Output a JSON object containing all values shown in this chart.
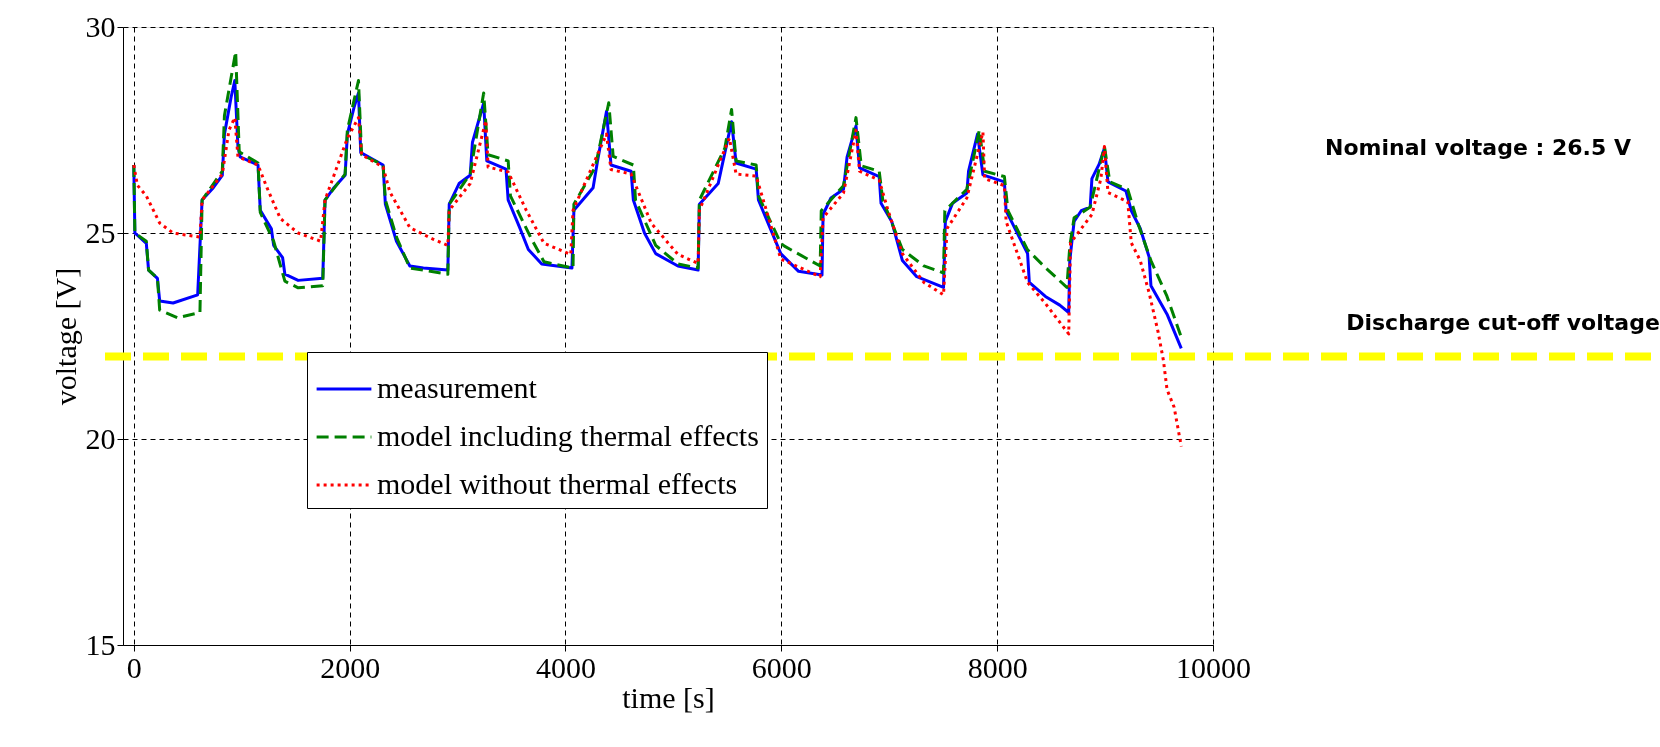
{
  "chart_data": {
    "type": "line",
    "xlabel": "time [s]",
    "ylabel": "voltage [V]",
    "xlim": [
      -100,
      10000
    ],
    "xticks": [
      0,
      2000,
      4000,
      6000,
      8000,
      10000
    ],
    "ylim": [
      15,
      30
    ],
    "yticks": [
      15,
      20,
      25,
      30
    ],
    "grid": true,
    "legend": "bottom left",
    "annotations": [
      "Nominal voltage : 26.5 V"
    ],
    "ref_lines": [
      {
        "axis": "y",
        "value": 22,
        "label": "Discharge cut-off voltage",
        "color": "#ffff00",
        "line_style": "dashed"
      }
    ],
    "series": [
      {
        "name": "measurement",
        "color": "#0000ff",
        "line_style": "solid",
        "x": [
          0,
          10,
          116,
          137,
          219,
          240,
          364,
          592,
          633,
          737,
          820,
          840,
          902,
          936,
          965,
          985,
          1151,
          1172,
          1275,
          1296,
          1379,
          1400,
          1523,
          1751,
          1772,
          1855,
          1958,
          1979,
          2041,
          2082,
          2103,
          2310,
          2331,
          2434,
          2558,
          2683,
          2910,
          2923,
          3014,
          3117,
          3138,
          3242,
          3271,
          3449,
          3469,
          3573,
          3656,
          3780,
          4060,
          4078,
          4256,
          4297,
          4380,
          4422,
          4608,
          4629,
          4732,
          4836,
          5042,
          5229,
          5241,
          5415,
          5477,
          5539,
          5581,
          5767,
          5788,
          5995,
          6160,
          6377,
          6387,
          6460,
          6576,
          6609,
          6692,
          6725,
          6907,
          6924,
          7023,
          7122,
          7255,
          7503,
          7520,
          7586,
          7719,
          7735,
          7818,
          7868,
          8067,
          8083,
          8182,
          8282,
          8298,
          8447,
          8580,
          8663,
          8673,
          8713,
          8779,
          8862,
          8878,
          8945,
          8994,
          9027,
          9193,
          9243,
          9326,
          9408,
          9425,
          9574,
          9706
        ],
        "values": [
          26.65,
          25.0,
          24.75,
          24.1,
          23.9,
          23.35,
          23.3,
          23.5,
          25.8,
          26.1,
          26.4,
          27.4,
          28.3,
          28.7,
          27.1,
          26.85,
          26.65,
          25.55,
          25.1,
          24.7,
          24.4,
          24.0,
          23.85,
          23.9,
          25.8,
          26.1,
          26.4,
          27.4,
          28.05,
          28.4,
          26.95,
          26.65,
          25.7,
          24.8,
          24.2,
          24.15,
          24.1,
          25.7,
          26.2,
          26.4,
          27.2,
          28.15,
          26.75,
          26.55,
          25.8,
          25.15,
          24.6,
          24.25,
          24.15,
          25.55,
          26.1,
          26.75,
          27.95,
          26.65,
          26.5,
          25.8,
          25.0,
          24.5,
          24.2,
          24.1,
          25.7,
          26.2,
          26.95,
          27.7,
          26.7,
          26.55,
          25.8,
          24.5,
          24.07,
          23.98,
          25.45,
          25.85,
          26.06,
          26.84,
          27.6,
          26.58,
          26.37,
          25.72,
          25.28,
          24.33,
          23.94,
          23.68,
          25.28,
          25.72,
          25.97,
          26.5,
          27.4,
          26.41,
          26.24,
          25.54,
          25.02,
          24.5,
          23.8,
          23.46,
          23.25,
          23.07,
          24.33,
          25.28,
          25.54,
          25.63,
          26.32,
          26.67,
          27.06,
          26.24,
          26.02,
          25.54,
          25.11,
          24.42,
          23.72,
          23.03,
          22.2
        ]
      },
      {
        "name": "model including thermal effects",
        "color": "#008000",
        "line_style": "dashed",
        "x": [
          0,
          10,
          116,
          137,
          219,
          240,
          406,
          613,
          633,
          820,
          840,
          944,
          977,
          1151,
          1172,
          1296,
          1400,
          1523,
          1751,
          1772,
          1958,
          1979,
          2082,
          2111,
          2310,
          2331,
          2434,
          2558,
          2910,
          2923,
          3117,
          3242,
          3283,
          3469,
          3490,
          3676,
          3801,
          4070,
          4078,
          4276,
          4401,
          4442,
          4629,
          4649,
          4836,
          5042,
          5229,
          5241,
          5477,
          5539,
          5581,
          5767,
          5788,
          5995,
          6029,
          6360,
          6370,
          6576,
          6692,
          6741,
          6907,
          6940,
          7122,
          7321,
          7503,
          7515,
          7719,
          7835,
          7884,
          8067,
          8100,
          8182,
          8282,
          8447,
          8646,
          8673,
          8713,
          8862,
          8994,
          9044,
          9210,
          9309,
          9425,
          9574,
          9706
        ],
        "values": [
          26.65,
          25.0,
          24.8,
          24.1,
          23.9,
          23.13,
          22.94,
          23.07,
          25.8,
          26.5,
          27.85,
          29.4,
          26.97,
          26.7,
          25.5,
          24.8,
          23.83,
          23.67,
          23.72,
          25.8,
          26.43,
          27.5,
          28.7,
          26.9,
          26.65,
          25.8,
          24.9,
          24.15,
          24.0,
          25.7,
          26.43,
          28.4,
          26.9,
          26.75,
          25.9,
          24.9,
          24.3,
          24.15,
          25.7,
          26.6,
          28.16,
          26.86,
          26.65,
          25.8,
          24.7,
          24.25,
          24.15,
          25.8,
          27.06,
          28.0,
          26.75,
          26.65,
          25.9,
          24.75,
          24.68,
          24.2,
          25.54,
          26.15,
          27.8,
          26.63,
          26.5,
          25.8,
          24.6,
          24.2,
          24.03,
          25.54,
          26.06,
          27.5,
          26.5,
          26.37,
          25.54,
          25.11,
          24.59,
          24.16,
          23.68,
          24.68,
          25.37,
          25.63,
          27.1,
          26.24,
          26.06,
          25.2,
          24.33,
          23.46,
          22.47
        ]
      },
      {
        "name": "model without thermal effects",
        "color": "#ff0000",
        "line_style": "dotted",
        "x": [
          0,
          33,
          116,
          240,
          364,
          613,
          633,
          820,
          882,
          936,
          965,
          1151,
          1234,
          1358,
          1523,
          1731,
          1772,
          1979,
          2082,
          2111,
          2310,
          2372,
          2558,
          2766,
          2910,
          2923,
          3117,
          3262,
          3283,
          3469,
          3635,
          3801,
          4049,
          4070,
          4380,
          4422,
          4608,
          4794,
          5042,
          5229,
          5241,
          5519,
          5581,
          5767,
          5995,
          6360,
          6387,
          6576,
          6692,
          6725,
          6907,
          6990,
          7122,
          7321,
          7503,
          7536,
          7719,
          7868,
          7884,
          8067,
          8083,
          8282,
          8447,
          8663,
          8680,
          8878,
          8961,
          8994,
          9027,
          9210,
          9243,
          9326,
          9408,
          9491,
          9541,
          9574,
          9640,
          9706
        ],
        "values": [
          26.65,
          26.16,
          25.9,
          25.24,
          25.0,
          24.9,
          25.8,
          26.43,
          27.5,
          27.8,
          26.85,
          26.65,
          26.1,
          25.35,
          25.0,
          24.8,
          25.8,
          27.3,
          27.8,
          26.9,
          26.6,
          26.0,
          25.13,
          24.86,
          24.7,
          25.55,
          26.2,
          27.73,
          26.6,
          26.48,
          25.56,
          24.75,
          24.48,
          25.55,
          27.4,
          26.54,
          26.43,
          25.24,
          24.48,
          24.26,
          25.55,
          27.3,
          26.43,
          26.38,
          24.37,
          23.94,
          25.37,
          25.97,
          27.49,
          26.5,
          26.28,
          25.54,
          24.5,
          23.8,
          23.5,
          25.11,
          25.85,
          27.45,
          26.32,
          26.15,
          25.28,
          23.8,
          23.29,
          22.55,
          24.76,
          25.45,
          26.32,
          27.1,
          25.98,
          25.76,
          24.76,
          24.33,
          23.55,
          22.6,
          21.9,
          21.2,
          20.77,
          19.82
        ]
      }
    ]
  }
}
